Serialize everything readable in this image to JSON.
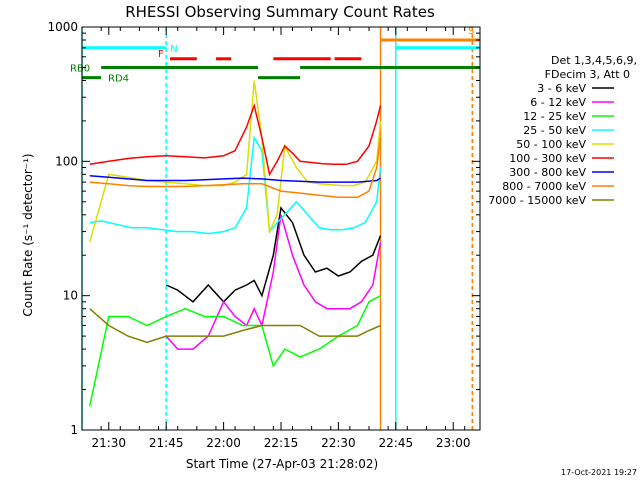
{
  "chart_data": {
    "type": "line",
    "title": "RHESSI Observing Summary Count Rates",
    "xlabel": "Start Time (27-Apr-03 21:28:02)",
    "ylabel": "Count Rate (s⁻¹ detector⁻¹)",
    "y_scale": "log",
    "xlim": [
      "21:23",
      "23:07"
    ],
    "ylim": [
      1,
      1000
    ],
    "x_ticks": [
      "21:30",
      "21:45",
      "22:00",
      "22:15",
      "22:30",
      "22:45",
      "23:00"
    ],
    "y_ticks": [
      "1",
      "10",
      "100",
      "1000"
    ],
    "legend_header": [
      "Det 1,3,4,5,6,9,",
      "FDecim 3, Att 0"
    ],
    "legend_position": "right",
    "timestamp": "17-Oct-2021 19:27",
    "series": [
      {
        "name": "3 - 6 keV",
        "color": "#000000",
        "x": [
          "21:45",
          "21:48",
          "21:52",
          "21:56",
          "22:00",
          "22:03",
          "22:06",
          "22:08",
          "22:10",
          "22:13",
          "22:15",
          "22:18",
          "22:21",
          "22:24",
          "22:27",
          "22:30",
          "22:33",
          "22:36",
          "22:39",
          "22:41"
        ],
        "y": [
          12,
          11,
          9,
          12,
          9,
          11,
          12,
          13,
          10,
          20,
          45,
          35,
          20,
          15,
          16,
          14,
          15,
          18,
          20,
          28
        ]
      },
      {
        "name": "6 - 12 keV",
        "color": "#ff00ff",
        "x": [
          "21:45",
          "21:48",
          "21:52",
          "21:56",
          "22:00",
          "22:03",
          "22:06",
          "22:08",
          "22:10",
          "22:13",
          "22:15",
          "22:18",
          "22:21",
          "22:24",
          "22:27",
          "22:30",
          "22:33",
          "22:36",
          "22:39",
          "22:41"
        ],
        "y": [
          5,
          4,
          4,
          5,
          9,
          7,
          6,
          8,
          6,
          15,
          40,
          20,
          12,
          9,
          8,
          8,
          8,
          9,
          12,
          25
        ]
      },
      {
        "name": "12 - 25 keV",
        "color": "#00ff00",
        "x": [
          "21:25",
          "21:30",
          "21:35",
          "21:40",
          "21:45",
          "21:50",
          "21:55",
          "22:00",
          "22:05",
          "22:10",
          "22:13",
          "22:16",
          "22:20",
          "22:25",
          "22:30",
          "22:35",
          "22:38",
          "22:41"
        ],
        "y": [
          1.5,
          7,
          7,
          6,
          7,
          8,
          7,
          7,
          6,
          6,
          3,
          4,
          3.5,
          4,
          5,
          6,
          9,
          10
        ]
      },
      {
        "name": "25 - 50 keV",
        "color": "#00ffff",
        "x": [
          "21:25",
          "21:28",
          "21:32",
          "21:36",
          "21:40",
          "21:44",
          "21:48",
          "21:52",
          "21:56",
          "22:00",
          "22:03",
          "22:06",
          "22:08",
          "22:10",
          "22:12",
          "22:14",
          "22:16",
          "22:19",
          "22:22",
          "22:25",
          "22:28",
          "22:31",
          "22:34",
          "22:37",
          "22:40",
          "22:41"
        ],
        "y": [
          35,
          36,
          34,
          32,
          32,
          31,
          30,
          30,
          29,
          30,
          32,
          45,
          150,
          120,
          30,
          35,
          40,
          50,
          40,
          32,
          31,
          31,
          32,
          35,
          50,
          90
        ]
      },
      {
        "name": "50 - 100 keV",
        "color": "#dddd00",
        "x": [
          "21:25",
          "21:30",
          "21:35",
          "21:40",
          "21:45",
          "21:50",
          "21:55",
          "22:00",
          "22:03",
          "22:06",
          "22:08",
          "22:10",
          "22:12",
          "22:14",
          "22:16",
          "22:19",
          "22:22",
          "22:25",
          "22:28",
          "22:31",
          "22:34",
          "22:37",
          "22:40",
          "22:41"
        ],
        "y": [
          25,
          80,
          76,
          72,
          70,
          68,
          66,
          66,
          70,
          80,
          400,
          150,
          30,
          40,
          130,
          90,
          70,
          68,
          67,
          66,
          66,
          70,
          100,
          200
        ]
      },
      {
        "name": "100 - 300 keV",
        "color": "#ff0000",
        "x": [
          "21:25",
          "21:30",
          "21:35",
          "21:40",
          "21:45",
          "21:50",
          "21:55",
          "22:00",
          "22:03",
          "22:06",
          "22:08",
          "22:10",
          "22:12",
          "22:14",
          "22:16",
          "22:18",
          "22:20",
          "22:23",
          "22:26",
          "22:29",
          "22:32",
          "22:35",
          "22:38",
          "22:40",
          "22:41"
        ],
        "y": [
          95,
          100,
          105,
          108,
          110,
          108,
          106,
          110,
          120,
          180,
          260,
          150,
          80,
          100,
          130,
          115,
          100,
          98,
          96,
          95,
          95,
          100,
          130,
          200,
          260
        ]
      },
      {
        "name": "300 - 800 keV",
        "color": "#0000ff",
        "x": [
          "21:25",
          "21:30",
          "21:35",
          "21:40",
          "21:45",
          "21:50",
          "21:55",
          "22:00",
          "22:05",
          "22:10",
          "22:15",
          "22:20",
          "22:25",
          "22:30",
          "22:35",
          "22:40",
          "22:41"
        ],
        "y": [
          78,
          76,
          74,
          72,
          72,
          72,
          73,
          74,
          75,
          74,
          72,
          71,
          70,
          70,
          70,
          72,
          75
        ]
      },
      {
        "name": "800 - 7000 keV",
        "color": "#ff8000",
        "x": [
          "21:25",
          "21:30",
          "21:35",
          "21:40",
          "21:45",
          "21:50",
          "21:55",
          "22:00",
          "22:05",
          "22:10",
          "22:15",
          "22:20",
          "22:25",
          "22:30",
          "22:35",
          "22:38",
          "22:40",
          "22:41"
        ],
        "y": [
          70,
          68,
          66,
          65,
          65,
          65,
          66,
          67,
          68,
          68,
          60,
          58,
          56,
          54,
          54,
          60,
          90,
          150
        ]
      },
      {
        "name": "7000 - 15000 keV",
        "color": "#808000",
        "x": [
          "21:25",
          "21:30",
          "21:35",
          "21:40",
          "21:45",
          "21:50",
          "21:55",
          "22:00",
          "22:05",
          "22:10",
          "22:15",
          "22:20",
          "22:25",
          "22:30",
          "22:35",
          "22:38",
          "22:41"
        ],
        "y": [
          8,
          6,
          5,
          4.5,
          5,
          5,
          5,
          5,
          5.5,
          6,
          6,
          6,
          5,
          5,
          5,
          5.5,
          6
        ]
      }
    ],
    "event_bars": [
      {
        "label": "N",
        "color": "#00ffff",
        "y": 700,
        "ranges": [
          [
            "21:23",
            "21:45"
          ],
          [
            "22:45",
            "23:07"
          ]
        ]
      },
      {
        "label": "F",
        "color": "#ff0000",
        "y": 580,
        "ranges": [
          [
            "21:46",
            "21:53"
          ],
          [
            "21:58",
            "22:02"
          ],
          [
            "22:13",
            "22:28"
          ],
          [
            "22:29",
            "22:36"
          ]
        ]
      },
      {
        "label": "S",
        "color": "#ff8000",
        "y": 800,
        "ranges": [
          [
            "22:41",
            "23:07"
          ]
        ]
      },
      {
        "label": "RB0",
        "color": "#008000",
        "y": 500,
        "ranges": [
          [
            "21:28",
            "22:09"
          ],
          [
            "22:20",
            "23:07"
          ]
        ]
      },
      {
        "label": "RD4",
        "color": "#008000",
        "y": 420,
        "ranges": [
          [
            "21:23",
            "21:28"
          ],
          [
            "22:09",
            "22:20"
          ]
        ]
      }
    ],
    "vertical_markers": [
      {
        "x": "21:23",
        "color": "#00ffff",
        "style": "solid"
      },
      {
        "x": "21:45",
        "color": "#00ffff",
        "style": "dashed"
      },
      {
        "x": "22:41",
        "color": "#ff8000",
        "style": "solid"
      },
      {
        "x": "22:45",
        "color": "#00ffff",
        "style": "solid"
      },
      {
        "x": "23:05",
        "color": "#00ffff",
        "style": "dashed"
      },
      {
        "x": "23:05",
        "color": "#ff8000",
        "style": "dashed"
      }
    ]
  }
}
